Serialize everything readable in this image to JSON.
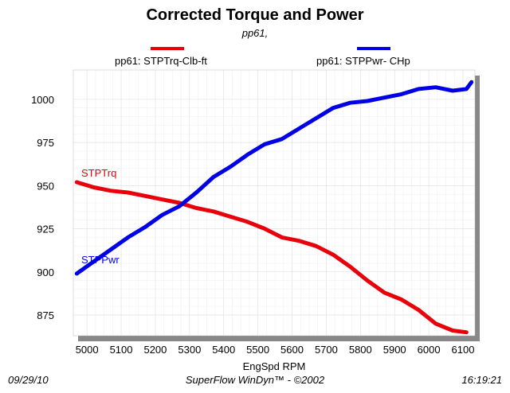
{
  "header": {
    "title": "Corrected Torque and Power",
    "subtitle": "pp61,"
  },
  "legend": [
    {
      "label": "pp61: STPTrq-Clb-ft",
      "color": "#e8000b"
    },
    {
      "label": "pp61: STPPwr- CHp",
      "color": "#0000e6"
    }
  ],
  "footer": {
    "date": "09/29/10",
    "software": "SuperFlow WinDyn™ - ©2002",
    "time": "16:19:21"
  },
  "chart_data": {
    "type": "line",
    "xlabel": "EngSpd  RPM",
    "ylabel": "",
    "xlim": [
      4960,
      6135
    ],
    "ylim": [
      863,
      1017
    ],
    "x_ticks": [
      5000,
      5100,
      5200,
      5300,
      5400,
      5500,
      5600,
      5700,
      5800,
      5900,
      6000,
      6100
    ],
    "y_ticks": [
      875,
      900,
      925,
      950,
      975,
      1000
    ],
    "grid": true,
    "legend_position": "top",
    "series": [
      {
        "name": "STPTrq",
        "color": "#e8000b",
        "x": [
          4970,
          5020,
          5070,
          5120,
          5170,
          5220,
          5270,
          5320,
          5370,
          5420,
          5470,
          5520,
          5570,
          5620,
          5670,
          5720,
          5770,
          5820,
          5870,
          5920,
          5970,
          6020,
          6070,
          6110
        ],
        "y": [
          952,
          949,
          947,
          946,
          944,
          942,
          940,
          937,
          935,
          932,
          929,
          925,
          920,
          918,
          915,
          910,
          903,
          895,
          888,
          884,
          878,
          870,
          866,
          865
        ]
      },
      {
        "name": "STPPwr",
        "color": "#0000e6",
        "x": [
          4970,
          5020,
          5070,
          5120,
          5170,
          5220,
          5270,
          5320,
          5370,
          5420,
          5470,
          5520,
          5570,
          5620,
          5670,
          5720,
          5770,
          5820,
          5870,
          5920,
          5970,
          6020,
          6070,
          6110,
          6125
        ],
        "y": [
          899,
          906,
          913,
          920,
          926,
          933,
          938,
          946,
          955,
          961,
          968,
          974,
          977,
          983,
          989,
          995,
          998,
          999,
          1001,
          1003,
          1006,
          1007,
          1005,
          1006,
          1010
        ]
      }
    ]
  }
}
